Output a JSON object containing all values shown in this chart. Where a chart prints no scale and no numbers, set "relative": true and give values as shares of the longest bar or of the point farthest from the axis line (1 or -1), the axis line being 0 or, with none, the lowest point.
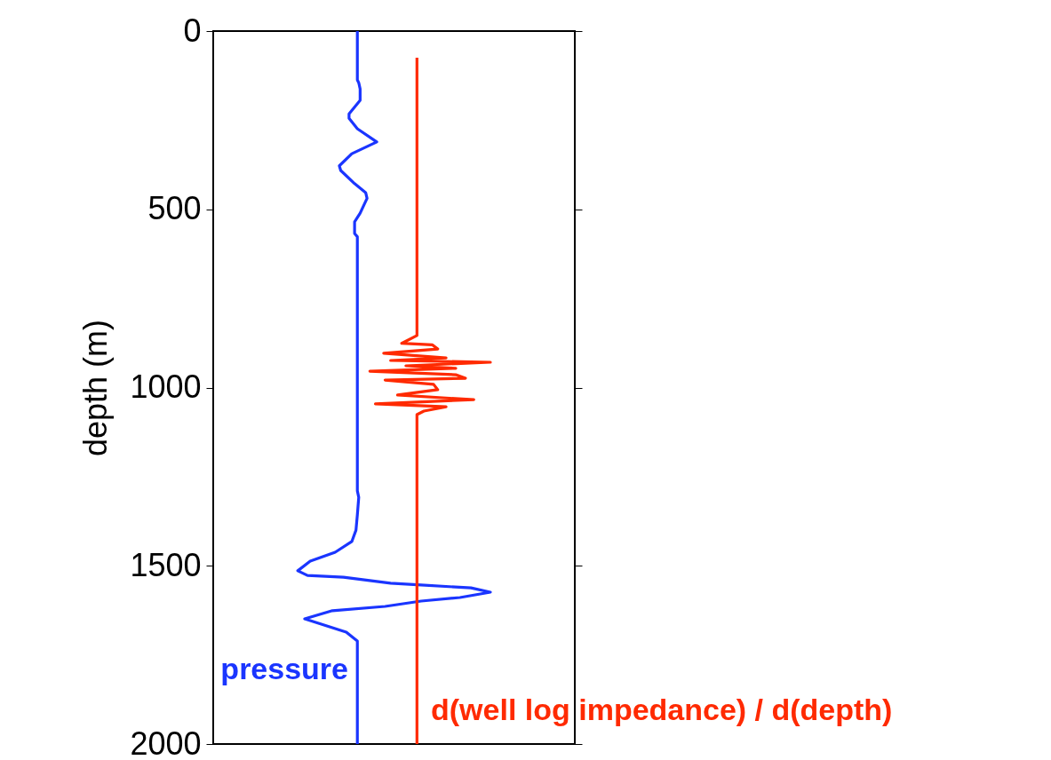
{
  "chart_data": {
    "type": "line",
    "orientation": "horizontal",
    "relative": true,
    "ylabel": "depth (m)",
    "ylim": [
      2000,
      0
    ],
    "yticks": [
      0,
      500,
      1000,
      1500,
      2000
    ],
    "grid": false,
    "marker": "none",
    "line_style": "solid",
    "series": [
      {
        "name": "pressure",
        "color": "#1a35ff",
        "x": [
          0,
          137,
          145,
          162,
          194,
          232,
          245,
          274,
          311,
          344,
          378,
          391,
          428,
          453,
          469,
          511,
          535,
          568,
          577,
          1290,
          1308,
          1357,
          1400,
          1432,
          1462,
          1487,
          1514,
          1527,
          1532,
          1549,
          1554,
          1562,
          1574,
          1589,
          1599,
          1614,
          1626,
          1649,
          1664,
          1686,
          1711,
          2000
        ],
        "values": [
          0.52,
          0.52,
          0.525,
          0.53,
          0.53,
          0.49,
          0.49,
          0.52,
          0.59,
          0.5,
          0.455,
          0.46,
          0.51,
          0.55,
          0.555,
          0.53,
          0.51,
          0.51,
          0.52,
          0.52,
          0.525,
          0.52,
          0.515,
          0.5,
          0.44,
          0.35,
          0.305,
          0.34,
          0.47,
          0.64,
          0.75,
          0.93,
          1.0,
          0.89,
          0.75,
          0.62,
          0.43,
          0.33,
          0.39,
          0.48,
          0.52,
          0.52
        ]
      },
      {
        "name": "d(well log impedance) / d(depth)",
        "color": "#ff2a00",
        "x": [
          75,
          854,
          876,
          880,
          892,
          904,
          917,
          924,
          929,
          939,
          946,
          954,
          964,
          974,
          979,
          991,
          1006,
          1021,
          1034,
          1046,
          1054,
          1066,
          1076,
          2000
        ],
        "values": [
          0.735,
          0.735,
          0.68,
          0.79,
          0.81,
          0.615,
          0.84,
          0.64,
          1.0,
          0.695,
          0.875,
          0.565,
          0.875,
          0.91,
          0.62,
          0.795,
          0.81,
          0.665,
          0.94,
          0.585,
          0.84,
          0.76,
          0.735,
          0.735
        ]
      }
    ]
  }
}
